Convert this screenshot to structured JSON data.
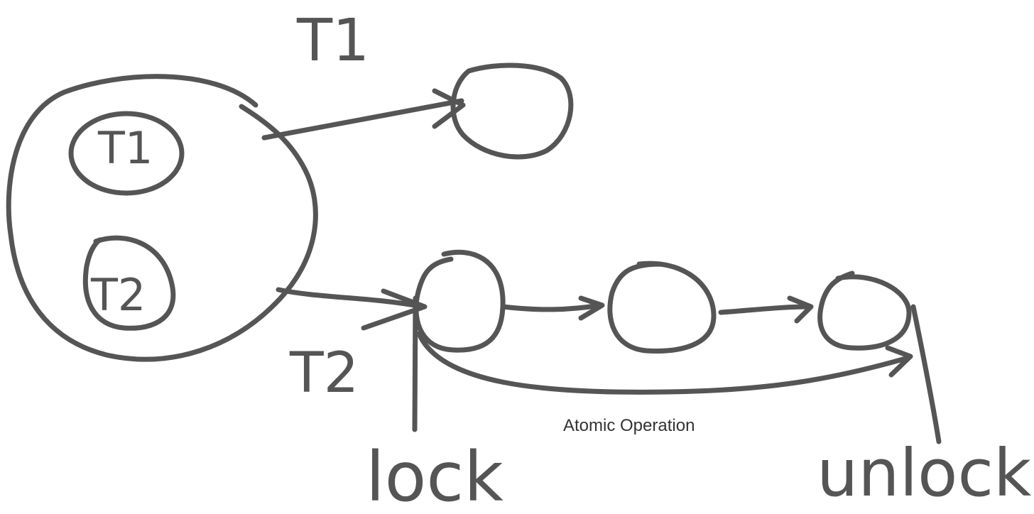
{
  "labels": {
    "t1_top": "T1",
    "t1_inner": "T1",
    "t2_inner": "T2",
    "t2_bottom": "T2",
    "lock": "lock",
    "unlock": "unlock",
    "atomic_operation": "Atomic Operation"
  },
  "colors": {
    "ink": "#555555",
    "note_text": "#333333",
    "background": "#ffffff"
  }
}
